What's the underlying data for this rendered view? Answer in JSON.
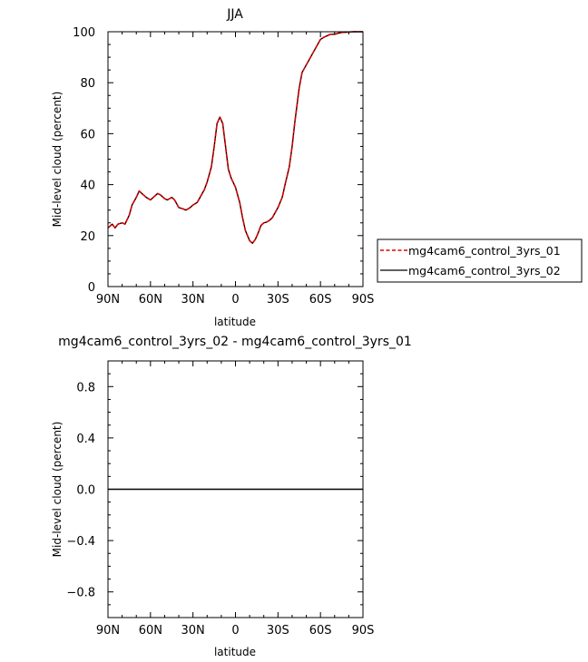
{
  "chart_data": [
    {
      "type": "line",
      "title": "JJA",
      "xlabel": "latitude",
      "ylabel": "Mid-level cloud (percent)",
      "xlim": [
        -90,
        90
      ],
      "ylim": [
        0,
        100
      ],
      "x_ticks": [
        -90,
        -60,
        -30,
        0,
        30,
        60,
        90
      ],
      "x_tick_labels": [
        "90N",
        "60N",
        "30N",
        "0",
        "30S",
        "60S",
        "90S"
      ],
      "y_ticks": [
        0,
        20,
        40,
        60,
        80,
        100
      ],
      "y_tick_labels": [
        "0",
        "20",
        "40",
        "60",
        "80",
        "100"
      ],
      "grid": false,
      "legend_position": "right",
      "x": [
        -90,
        -87,
        -85,
        -83,
        -80,
        -78,
        -75,
        -73,
        -70,
        -68,
        -65,
        -63,
        -60,
        -58,
        -55,
        -53,
        -50,
        -48,
        -45,
        -43,
        -40,
        -37,
        -35,
        -32,
        -30,
        -27,
        -25,
        -22,
        -20,
        -17,
        -15,
        -13,
        -11,
        -9,
        -7,
        -5,
        -3,
        0,
        3,
        5,
        7,
        10,
        12,
        14,
        16,
        18,
        20,
        22,
        24,
        26,
        28,
        30,
        33,
        35,
        38,
        40,
        42,
        45,
        47,
        50,
        52,
        54,
        56,
        58,
        60,
        63,
        65,
        67,
        70,
        73,
        75,
        78,
        80,
        83,
        85,
        88,
        90
      ],
      "series": [
        {
          "name": "mg4cam6_control_3yrs_01",
          "color": "#e00000",
          "dash": "dashed",
          "values": [
            23,
            24.5,
            23,
            24.5,
            25,
            24.5,
            28,
            32,
            35,
            37.5,
            36,
            35,
            34,
            35,
            36.5,
            36,
            34.5,
            34,
            35,
            34,
            31,
            30.5,
            30,
            31,
            32,
            33,
            35,
            38,
            41,
            47,
            55,
            64,
            66.5,
            64,
            55,
            46,
            42.5,
            39,
            33,
            27,
            22,
            18,
            17,
            18.5,
            21,
            24,
            25,
            25.3,
            26,
            27,
            29,
            31,
            35,
            40,
            47,
            55,
            65,
            78,
            84,
            87,
            89,
            91,
            93,
            95,
            97,
            98,
            98.5,
            99,
            99,
            99.5,
            99.7,
            99.8,
            99.9,
            100,
            100,
            100,
            100
          ]
        },
        {
          "name": "mg4cam6_control_3yrs_02",
          "color": "#000000",
          "dash": "solid",
          "values": [
            23,
            24.5,
            23,
            24.5,
            25,
            24.5,
            28,
            32,
            35,
            37.5,
            36,
            35,
            34,
            35,
            36.5,
            36,
            34.5,
            34,
            35,
            34,
            31,
            30.5,
            30,
            31,
            32,
            33,
            35,
            38,
            41,
            47,
            55,
            64,
            66.5,
            64,
            55,
            46,
            42.5,
            39,
            33,
            27,
            22,
            18,
            17,
            18.5,
            21,
            24,
            25,
            25.3,
            26,
            27,
            29,
            31,
            35,
            40,
            47,
            55,
            65,
            78,
            84,
            87,
            89,
            91,
            93,
            95,
            97,
            98,
            98.5,
            99,
            99,
            99.5,
            99.7,
            99.8,
            99.9,
            100,
            100,
            100,
            100
          ]
        }
      ]
    },
    {
      "type": "line",
      "title": "mg4cam6_control_3yrs_02 - mg4cam6_control_3yrs_01",
      "xlabel": "latitude",
      "ylabel": "Mid-level cloud (percent)",
      "xlim": [
        -90,
        90
      ],
      "ylim": [
        -1,
        1
      ],
      "x_ticks": [
        -90,
        -60,
        -30,
        0,
        30,
        60,
        90
      ],
      "x_tick_labels": [
        "90N",
        "60N",
        "30N",
        "0",
        "30S",
        "60S",
        "90S"
      ],
      "y_ticks": [
        -0.8,
        -0.4,
        0.0,
        0.4,
        0.8
      ],
      "y_tick_labels": [
        "-0.8",
        "-0.4",
        "0.0",
        "0.4",
        "0.8"
      ],
      "grid": false,
      "x": [
        -90,
        90
      ],
      "series": [
        {
          "color": "#000000",
          "dash": "solid",
          "values": [
            0,
            0
          ]
        }
      ]
    }
  ]
}
